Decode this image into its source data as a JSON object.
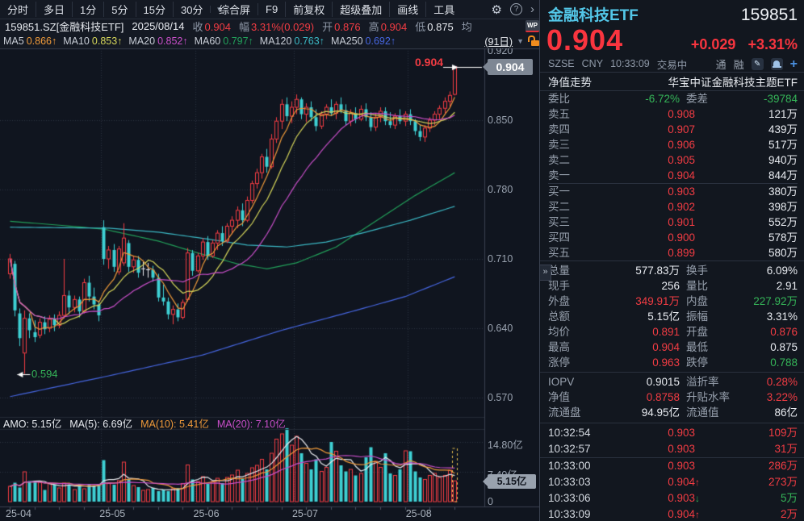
{
  "toolbar": {
    "period_tabs": [
      "分时",
      "多日",
      "1分",
      "5分",
      "15分",
      "30分"
    ],
    "period_caret": "▼",
    "menu_items": [
      "综合屏",
      "F9",
      "前复权",
      "超级叠加",
      "画线",
      "工具"
    ],
    "gear_icon": "⚙",
    "help_icon": "?",
    "more_icon": "›"
  },
  "quote_bar": {
    "symbol": "159851.SZ[金融科技ETF]",
    "date": "2025/08/14",
    "fields": [
      {
        "label": "收",
        "value": "0.904",
        "c": "up"
      },
      {
        "label": "幅",
        "value": "3.31%(0.029)",
        "c": "up"
      },
      {
        "label": "开",
        "value": "0.876",
        "c": "up"
      },
      {
        "label": "高",
        "value": "0.904",
        "c": "up"
      },
      {
        "label": "低",
        "value": "0.875",
        "c": "w"
      },
      {
        "label": "均",
        "value": "",
        "c": "gray"
      }
    ],
    "wp_badge": "WP"
  },
  "ma_bar": {
    "items": [
      {
        "label": "MA5",
        "value": "0.866",
        "arrow": "↑",
        "c": "ma5"
      },
      {
        "label": "MA10",
        "value": "0.853",
        "arrow": "↑",
        "c": "ma10"
      },
      {
        "label": "MA20",
        "value": "0.852",
        "arrow": "↑",
        "c": "ma20"
      },
      {
        "label": "MA60",
        "value": "0.797",
        "arrow": "↑",
        "c": "ma60"
      },
      {
        "label": "MA120",
        "value": "0.763",
        "arrow": "↑",
        "c": "ma120"
      },
      {
        "label": "MA250",
        "value": "0.692",
        "arrow": "↑",
        "c": "ma250"
      }
    ],
    "range_label": "(91日)",
    "range_caret": "▼"
  },
  "amo_bar": {
    "items": [
      {
        "label": "AMO:",
        "value": "5.15亿",
        "c": "w"
      },
      {
        "label": "MA(5):",
        "value": "6.69亿",
        "c": "w"
      },
      {
        "label": "MA(10):",
        "value": "5.41亿",
        "c": "ma5"
      },
      {
        "label": "MA(20):",
        "value": "7.10亿",
        "c": "ma20"
      }
    ]
  },
  "chart_data": {
    "type": "candlestick+volume",
    "title": "159851.SZ 金融科技ETF 日K (91日)",
    "x_labels": [
      {
        "label": "25-04",
        "idx": 0
      },
      {
        "label": "25-05",
        "idx": 19
      },
      {
        "label": "25-06",
        "idx": 38
      },
      {
        "label": "25-07",
        "idx": 58
      },
      {
        "label": "25-08",
        "idx": 81
      }
    ],
    "y_ticks_price": [
      0.92,
      0.85,
      0.78,
      0.71,
      0.64,
      0.57
    ],
    "y_ticks_volume": [
      {
        "label": "14.80亿",
        "v": 14.8
      },
      {
        "label": "7.40亿",
        "v": 7.4
      },
      {
        "label": "0",
        "v": 0
      }
    ],
    "price_badge": "0.904",
    "volume_badge": "5.15亿",
    "high_annotation": {
      "text": "0.904",
      "price": 0.904
    },
    "low_annotation": {
      "text": "0.594",
      "price": 0.594,
      "idx": 3
    },
    "candles": [
      [
        0.695,
        0.715,
        0.69,
        0.71
      ],
      [
        0.705,
        0.708,
        0.652,
        0.658
      ],
      [
        0.655,
        0.66,
        0.622,
        0.63
      ],
      [
        0.615,
        0.658,
        0.594,
        0.65
      ],
      [
        0.65,
        0.655,
        0.63,
        0.638
      ],
      [
        0.636,
        0.648,
        0.626,
        0.631
      ],
      [
        0.633,
        0.65,
        0.63,
        0.646
      ],
      [
        0.646,
        0.652,
        0.634,
        0.639
      ],
      [
        0.64,
        0.653,
        0.636,
        0.649
      ],
      [
        0.649,
        0.654,
        0.637,
        0.643
      ],
      [
        0.643,
        0.657,
        0.64,
        0.653
      ],
      [
        0.653,
        0.71,
        0.65,
        0.673
      ],
      [
        0.673,
        0.678,
        0.654,
        0.661
      ],
      [
        0.661,
        0.673,
        0.656,
        0.669
      ],
      [
        0.669,
        0.672,
        0.651,
        0.657
      ],
      [
        0.657,
        0.69,
        0.655,
        0.686
      ],
      [
        0.686,
        0.693,
        0.667,
        0.672
      ],
      [
        0.672,
        0.681,
        0.659,
        0.664
      ],
      [
        0.664,
        0.668,
        0.647,
        0.653
      ],
      [
        0.742,
        0.749,
        0.704,
        0.71
      ],
      [
        0.71,
        0.723,
        0.7,
        0.719
      ],
      [
        0.719,
        0.725,
        0.697,
        0.702
      ],
      [
        0.697,
        0.723,
        0.694,
        0.72
      ],
      [
        0.706,
        0.746,
        0.703,
        0.731
      ],
      [
        0.726,
        0.729,
        0.697,
        0.702
      ],
      [
        0.702,
        0.713,
        0.696,
        0.709
      ],
      [
        0.709,
        0.713,
        0.691,
        0.696
      ],
      [
        0.7,
        0.707,
        0.693,
        0.7
      ],
      [
        0.699,
        0.706,
        0.691,
        0.699
      ],
      [
        0.699,
        0.703,
        0.687,
        0.691
      ],
      [
        0.691,
        0.695,
        0.667,
        0.671
      ],
      [
        0.671,
        0.684,
        0.663,
        0.667
      ],
      [
        0.667,
        0.671,
        0.649,
        0.654
      ],
      [
        0.654,
        0.663,
        0.644,
        0.659
      ],
      [
        0.659,
        0.665,
        0.647,
        0.651
      ],
      [
        0.651,
        0.669,
        0.649,
        0.666
      ],
      [
        0.669,
        0.721,
        0.667,
        0.716
      ],
      [
        0.716,
        0.719,
        0.693,
        0.698
      ],
      [
        0.698,
        0.716,
        0.696,
        0.713
      ],
      [
        0.713,
        0.731,
        0.709,
        0.727
      ],
      [
        0.727,
        0.733,
        0.709,
        0.713
      ],
      [
        0.713,
        0.729,
        0.711,
        0.726
      ],
      [
        0.726,
        0.739,
        0.719,
        0.736
      ],
      [
        0.736,
        0.743,
        0.723,
        0.728
      ],
      [
        0.728,
        0.746,
        0.726,
        0.743
      ],
      [
        0.743,
        0.753,
        0.735,
        0.749
      ],
      [
        0.749,
        0.763,
        0.741,
        0.759
      ],
      [
        0.759,
        0.766,
        0.743,
        0.749
      ],
      [
        0.749,
        0.773,
        0.747,
        0.769
      ],
      [
        0.769,
        0.789,
        0.766,
        0.786
      ],
      [
        0.786,
        0.801,
        0.781,
        0.797
      ],
      [
        0.797,
        0.816,
        0.791,
        0.813
      ],
      [
        0.813,
        0.821,
        0.797,
        0.803
      ],
      [
        0.803,
        0.836,
        0.801,
        0.831
      ],
      [
        0.831,
        0.853,
        0.827,
        0.849
      ],
      [
        0.849,
        0.871,
        0.841,
        0.866
      ],
      [
        0.866,
        0.873,
        0.849,
        0.854
      ],
      [
        0.854,
        0.869,
        0.847,
        0.863
      ],
      [
        0.863,
        0.876,
        0.856,
        0.871
      ],
      [
        0.871,
        0.873,
        0.851,
        0.856
      ],
      [
        0.856,
        0.867,
        0.848,
        0.863
      ],
      [
        0.863,
        0.869,
        0.849,
        0.853
      ],
      [
        0.853,
        0.861,
        0.839,
        0.844
      ],
      [
        0.844,
        0.859,
        0.841,
        0.856
      ],
      [
        0.856,
        0.866,
        0.851,
        0.863
      ],
      [
        0.863,
        0.871,
        0.854,
        0.857
      ],
      [
        0.857,
        0.869,
        0.851,
        0.866
      ],
      [
        0.866,
        0.873,
        0.857,
        0.86
      ],
      [
        0.86,
        0.866,
        0.845,
        0.849
      ],
      [
        0.849,
        0.861,
        0.844,
        0.857
      ],
      [
        0.857,
        0.863,
        0.847,
        0.851
      ],
      [
        0.851,
        0.865,
        0.849,
        0.861
      ],
      [
        0.861,
        0.867,
        0.849,
        0.853
      ],
      [
        0.853,
        0.858,
        0.839,
        0.843
      ],
      [
        0.843,
        0.857,
        0.839,
        0.853
      ],
      [
        0.853,
        0.863,
        0.848,
        0.859
      ],
      [
        0.859,
        0.863,
        0.845,
        0.849
      ],
      [
        0.849,
        0.858,
        0.842,
        0.845
      ],
      [
        0.845,
        0.857,
        0.841,
        0.854
      ],
      [
        0.854,
        0.861,
        0.846,
        0.849
      ],
      [
        0.849,
        0.859,
        0.844,
        0.856
      ],
      [
        0.856,
        0.861,
        0.845,
        0.849
      ],
      [
        0.849,
        0.851,
        0.835,
        0.839
      ],
      [
        0.839,
        0.845,
        0.829,
        0.833
      ],
      [
        0.833,
        0.845,
        0.828,
        0.842
      ],
      [
        0.842,
        0.853,
        0.838,
        0.85
      ],
      [
        0.85,
        0.859,
        0.845,
        0.856
      ],
      [
        0.856,
        0.865,
        0.851,
        0.862
      ],
      [
        0.862,
        0.873,
        0.857,
        0.869
      ],
      [
        0.869,
        0.879,
        0.863,
        0.875
      ],
      [
        0.876,
        0.904,
        0.875,
        0.904
      ]
    ],
    "volumes": [
      3.8,
      4.7,
      3.5,
      7.4,
      5.1,
      4.8,
      4.8,
      2.9,
      4.5,
      4.2,
      3.4,
      4.6,
      4.2,
      3.0,
      4.4,
      3.2,
      4.2,
      4.0,
      4.4,
      10.3,
      4.5,
      4.2,
      5.2,
      9.8,
      5.5,
      4.0,
      3.6,
      2.8,
      3.0,
      3.4,
      2.6,
      3.0,
      2.6,
      3.2,
      3.4,
      4.5,
      9.1,
      5.5,
      5.0,
      6.2,
      4.4,
      5.0,
      5.8,
      4.6,
      6.0,
      6.6,
      7.8,
      5.6,
      7.0,
      8.4,
      9.0,
      10.5,
      8.0,
      12.0,
      15.5,
      16.8,
      18.2,
      14.0,
      16.2,
      12.0,
      9.5,
      8.0,
      10.5,
      7.5,
      8.5,
      14.8,
      12.5,
      9.0,
      7.5,
      8.0,
      6.5,
      7.0,
      11.0,
      13.5,
      10.0,
      8.5,
      12.0,
      7.0,
      6.5,
      8.0,
      12.6,
      12.5,
      7.5,
      6.0,
      5.5,
      6.5,
      7.0,
      6.0,
      6.5,
      7.8,
      5.15
    ],
    "volume_unit": "亿",
    "current_volume_projection": 13.2,
    "ma_windows": [
      {
        "n": 5,
        "c": "ma5"
      },
      {
        "n": 10,
        "c": "ma10"
      },
      {
        "n": 20,
        "c": "ma20"
      }
    ],
    "vol_ma_windows": [
      {
        "n": 5,
        "c": "flatline"
      },
      {
        "n": 10,
        "c": "ma5"
      },
      {
        "n": 20,
        "c": "ma20"
      }
    ],
    "overlays_anchor": [
      {
        "name": "MA60",
        "c": "ma60",
        "points": [
          [
            0,
            0.748
          ],
          [
            10,
            0.744
          ],
          [
            19,
            0.74
          ],
          [
            30,
            0.728
          ],
          [
            38,
            0.716
          ],
          [
            46,
            0.705
          ],
          [
            52,
            0.7
          ],
          [
            58,
            0.706
          ],
          [
            66,
            0.722
          ],
          [
            74,
            0.748
          ],
          [
            82,
            0.774
          ],
          [
            90,
            0.797
          ]
        ]
      },
      {
        "name": "MA120",
        "c": "ma120",
        "points": [
          [
            0,
            0.742
          ],
          [
            20,
            0.741
          ],
          [
            30,
            0.737
          ],
          [
            40,
            0.73
          ],
          [
            48,
            0.724
          ],
          [
            56,
            0.722
          ],
          [
            64,
            0.727
          ],
          [
            72,
            0.737
          ],
          [
            81,
            0.749
          ],
          [
            90,
            0.763
          ]
        ]
      },
      {
        "name": "MA250",
        "c": "ma250",
        "points": [
          [
            0,
            0.571
          ],
          [
            20,
            0.592
          ],
          [
            39,
            0.613
          ],
          [
            55,
            0.638
          ],
          [
            70,
            0.658
          ],
          [
            80,
            0.672
          ],
          [
            90,
            0.692
          ]
        ]
      }
    ]
  },
  "colors": {
    "up": "#f23c43",
    "down": "#3ed0d4",
    "flat": "#e8eaee",
    "flatline": "#e6e8ec",
    "ma5": "#ef9a3a",
    "ma10": "#d6d65a",
    "ma20": "#c94fc9",
    "ma60": "#22a05a",
    "ma120": "#3bb8c4",
    "ma250": "#4666e0",
    "grid": "#2c3340",
    "border": "#3a4150",
    "faint": "#232a36",
    "tick": "#4a5263",
    "dashed_bar": "#e8c050",
    "annotation": "#ffffff"
  },
  "right_panel": {
    "name": "金融科技ETF",
    "code": "159851",
    "price": "0.904",
    "change": "+0.029",
    "change_pct": "+3.31%",
    "exchange": "SZSE",
    "currency": "CNY",
    "time": "10:33:09",
    "status": "交易中",
    "tags": [
      "通",
      "融"
    ],
    "edit_icon": "✎",
    "add_icon": "+",
    "expand_handle": "»",
    "fund_row": {
      "left": "净值走势",
      "right": "华宝中证金融科技主题ETF"
    },
    "weibi": {
      "l": "委比",
      "v": "-6.72%",
      "c": "g",
      "l2": "委差",
      "v2": "-39784",
      "c2": "g"
    },
    "asks": [
      {
        "label": "卖五",
        "price": "0.908",
        "vol": "121万"
      },
      {
        "label": "卖四",
        "price": "0.907",
        "vol": "439万"
      },
      {
        "label": "卖三",
        "price": "0.906",
        "vol": "517万"
      },
      {
        "label": "卖二",
        "price": "0.905",
        "vol": "940万"
      },
      {
        "label": "卖一",
        "price": "0.904",
        "vol": "844万"
      }
    ],
    "bids": [
      {
        "label": "买一",
        "price": "0.903",
        "vol": "380万"
      },
      {
        "label": "买二",
        "price": "0.902",
        "vol": "398万"
      },
      {
        "label": "买三",
        "price": "0.901",
        "vol": "552万"
      },
      {
        "label": "买四",
        "price": "0.900",
        "vol": "578万"
      },
      {
        "label": "买五",
        "price": "0.899",
        "vol": "580万"
      }
    ],
    "stats_main": [
      {
        "l": "总量",
        "v": "577.83万",
        "c": "w",
        "l2": "换手",
        "v2": "6.09%",
        "c2": "w"
      },
      {
        "l": "现手",
        "v": "256",
        "c": "w",
        "l2": "量比",
        "v2": "2.91",
        "c2": "w"
      },
      {
        "l": "外盘",
        "v": "349.91万",
        "c": "up",
        "l2": "内盘",
        "v2": "227.92万",
        "c2": "g"
      },
      {
        "l": "总额",
        "v": "5.15亿",
        "c": "w",
        "l2": "振幅",
        "v2": "3.31%",
        "c2": "w"
      },
      {
        "l": "均价",
        "v": "0.891",
        "c": "up",
        "l2": "开盘",
        "v2": "0.876",
        "c2": "up"
      },
      {
        "l": "最高",
        "v": "0.904",
        "c": "up",
        "l2": "最低",
        "v2": "0.875",
        "c2": "w"
      },
      {
        "l": "涨停",
        "v": "0.963",
        "c": "up",
        "l2": "跌停",
        "v2": "0.788",
        "c2": "g"
      }
    ],
    "stats_sub": [
      {
        "l": "IOPV",
        "v": "0.9015",
        "c": "w",
        "l2": "溢折率",
        "v2": "0.28%",
        "c2": "up"
      },
      {
        "l": "净值",
        "v": "0.8758",
        "c": "up",
        "l2": "升贴水率",
        "v2": "3.22%",
        "c2": "up"
      },
      {
        "l": "流通盘",
        "v": "94.95亿",
        "c": "w",
        "l2": "流通值",
        "v2": "86亿",
        "c2": "w"
      }
    ],
    "ticks": [
      {
        "time": "10:32:54",
        "price": "0.903",
        "pc": "up",
        "arrow": "",
        "ac": "up",
        "vol": "109万",
        "vc": "up"
      },
      {
        "time": "10:32:57",
        "price": "0.903",
        "pc": "up",
        "arrow": "",
        "ac": "up",
        "vol": "31万",
        "vc": "up"
      },
      {
        "time": "10:33:00",
        "price": "0.903",
        "pc": "up",
        "arrow": "",
        "ac": "up",
        "vol": "286万",
        "vc": "up"
      },
      {
        "time": "10:33:03",
        "price": "0.904",
        "pc": "up",
        "arrow": "↑",
        "ac": "up",
        "vol": "273万",
        "vc": "up"
      },
      {
        "time": "10:33:06",
        "price": "0.903",
        "pc": "up",
        "arrow": "↓",
        "ac": "g",
        "vol": "5万",
        "vc": "g"
      },
      {
        "time": "10:33:09",
        "price": "0.904",
        "pc": "up",
        "arrow": "↑",
        "ac": "up",
        "vol": "2万",
        "vc": "up"
      }
    ]
  }
}
